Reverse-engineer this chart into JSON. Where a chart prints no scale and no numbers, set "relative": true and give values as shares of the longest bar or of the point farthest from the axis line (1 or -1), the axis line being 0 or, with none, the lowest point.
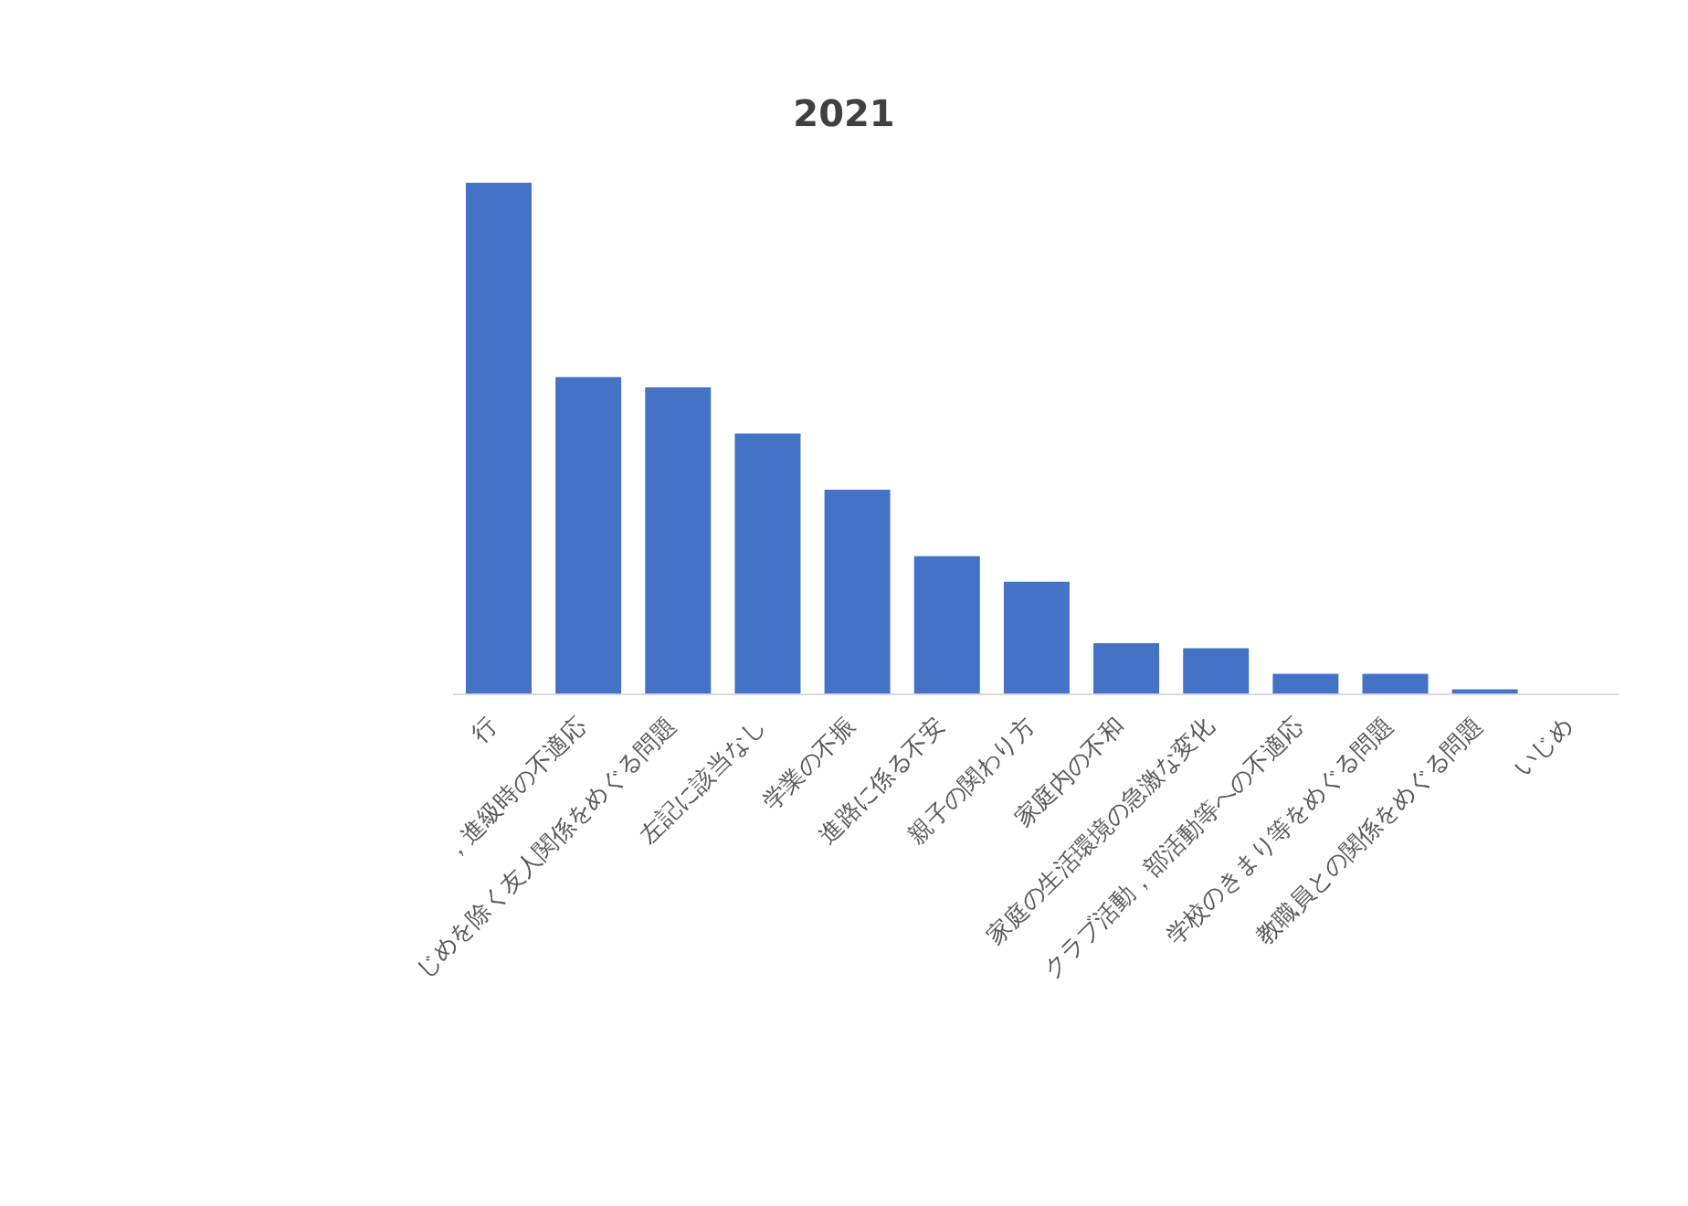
{
  "chart_data": {
    "type": "bar",
    "title": "2021",
    "relative": true,
    "categories": [
      "行",
      "，進級時の不適応",
      "じめを除く友人関係をめぐる問題",
      "左記に該当なし",
      "学業の不振",
      "進路に係る不安",
      "親子の関わり方",
      "家庭内の不和",
      "家庭の生活環境の急激な変化",
      "クラブ活動，部活動等への不適応",
      "学校のきまり等をめぐる問題",
      "教職員との関係をめぐる問題",
      "いじめ"
    ],
    "values": [
      1,
      0.62,
      0.6,
      0.51,
      0.4,
      0.27,
      0.22,
      0.1,
      0.09,
      0.04,
      0.04,
      0.01,
      0
    ],
    "color": "#4472c4"
  }
}
